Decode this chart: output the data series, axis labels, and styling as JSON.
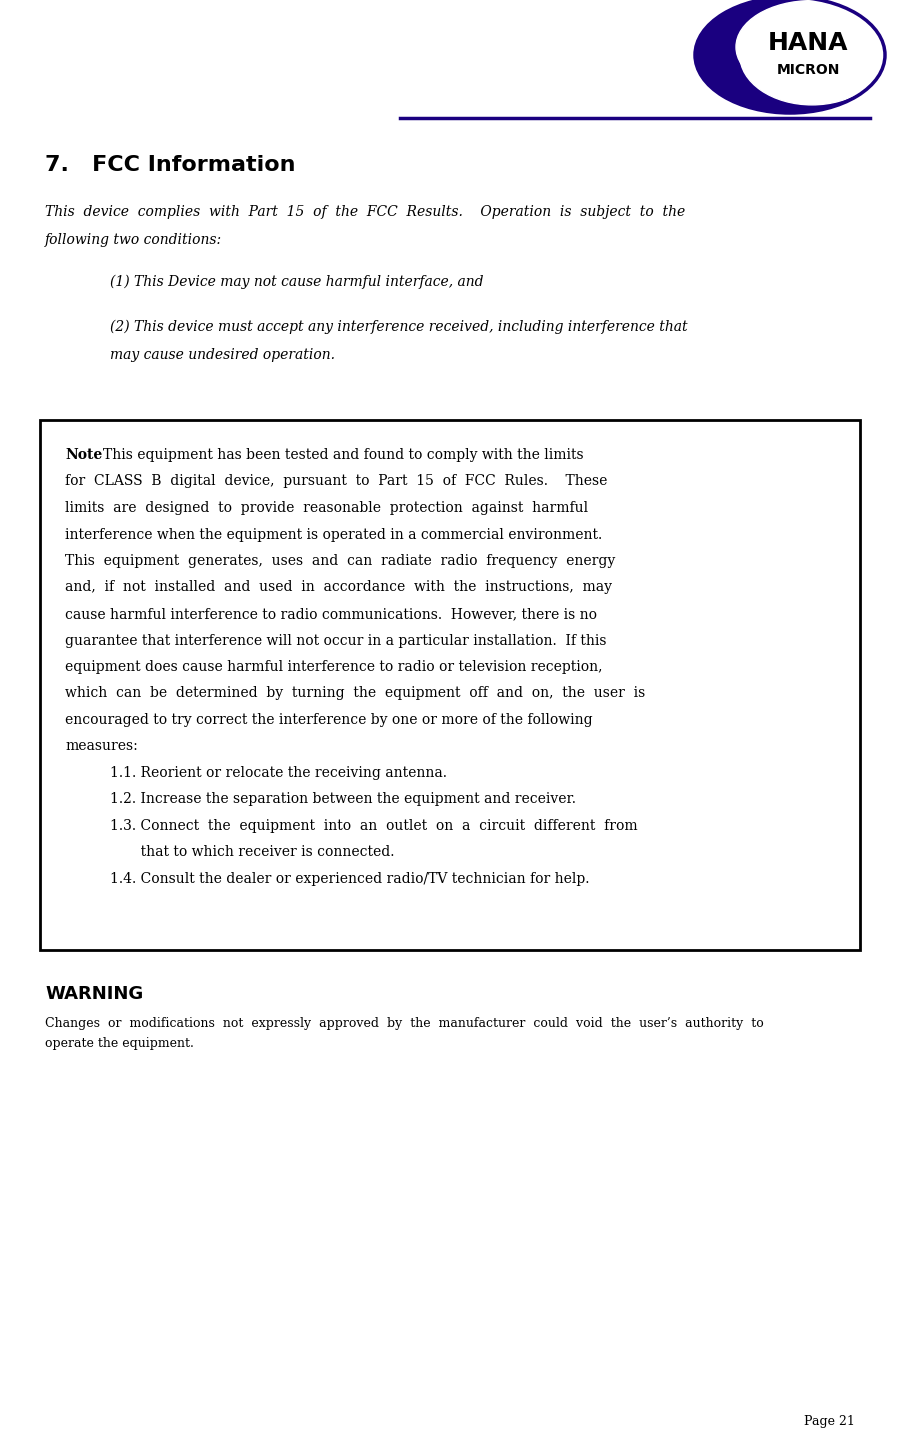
{
  "page_width": 8.98,
  "page_height": 14.43,
  "bg_color": "#ffffff",
  "header_line_color": "#1a0080",
  "text_color": "#000000",
  "box_border_color": "#000000",
  "logo_text1": "HANA",
  "logo_text2": "MICRON",
  "logo_color": "#1a0080",
  "section_title": "7.   FCC Information",
  "intro_line1": "This  device  complies  with  Part  15  of  the  FCC  Results.    Operation  is  subject  to  the",
  "intro_line2": "following two conditions:",
  "item1": "(1) This Device may not cause harmful interface, and",
  "item2": "(2) This device must accept any interference received, including interference that",
  "item2b": "may cause undesired operation.",
  "note_lines": [
    "This equipment has been tested and found to comply with the limits",
    "for  CLASS  B  digital  device,  pursuant  to  Part  15  of  FCC  Rules.    These",
    "limits  are  designed  to  provide  reasonable  protection  against  harmful",
    "interference when the equipment is operated in a commercial environment.",
    "This  equipment  generates,  uses  and  can  radiate  radio  frequency  energy",
    "and,  if  not  installed  and  used  in  accordance  with  the  instructions,  may",
    "cause harmful interference to radio communications.  However, there is no",
    "guarantee that interference will not occur in a particular installation.  If this",
    "equipment does cause harmful interference to radio or television reception,",
    "which  can  be  determined  by  turning  the  equipment  off  and  on,  the  user  is",
    "encouraged to try correct the interference by one or more of the following",
    "measures:"
  ],
  "sub1": "1.1. Reorient or relocate the receiving antenna.",
  "sub2": "1.2. Increase the separation between the equipment and receiver.",
  "sub3a": "1.3. Connect  the  equipment  into  an  outlet  on  a  circuit  different  from",
  "sub3b": "       that to which receiver is connected.",
  "sub4": "1.4. Consult the dealer or experienced radio/TV technician for help.",
  "warning_title": "WARNING",
  "warn_line1": "Changes  or  modifications  not  expressly  approved  by  the  manufacturer  could  void  the  user’s  authority  to",
  "warn_line2": "operate the equipment.",
  "page_num": "Page 21"
}
